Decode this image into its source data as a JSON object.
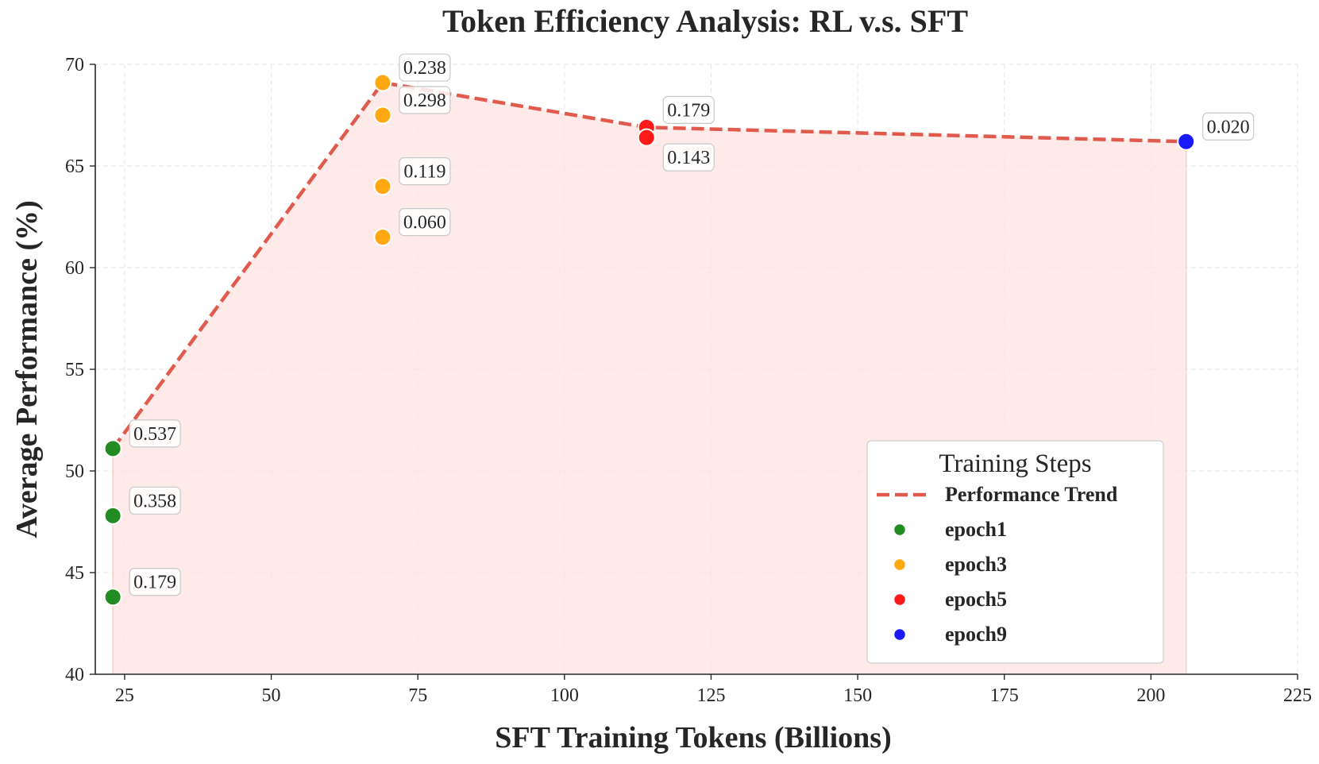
{
  "chart_data": {
    "type": "scatter",
    "title": "Token Efficiency Analysis: RL v.s. SFT",
    "xlabel": "SFT Training Tokens (Billions)",
    "ylabel": "Average Performance (%)",
    "xlim": [
      20,
      225
    ],
    "ylim": [
      40,
      70
    ],
    "xticks": [
      25,
      50,
      75,
      100,
      125,
      150,
      175,
      200,
      225
    ],
    "yticks": [
      40,
      45,
      50,
      55,
      60,
      65,
      70
    ],
    "grid": true,
    "legend": {
      "title": "Training Steps",
      "placement": "lower-right",
      "entries": [
        "Performance Trend",
        "epoch1",
        "epoch3",
        "epoch5",
        "epoch9"
      ]
    },
    "trend": {
      "name": "Performance Trend",
      "color": "#e05a4e",
      "x": [
        23,
        69,
        114,
        206
      ],
      "y": [
        51.1,
        69.1,
        66.9,
        66.2
      ]
    },
    "series": [
      {
        "name": "epoch1",
        "color": "#228b22",
        "points": [
          {
            "x": 23,
            "y": 51.1,
            "label": "0.537"
          },
          {
            "x": 23,
            "y": 47.8,
            "label": "0.358"
          },
          {
            "x": 23,
            "y": 43.8,
            "label": "0.179"
          }
        ]
      },
      {
        "name": "epoch3",
        "color": "#ffa812",
        "points": [
          {
            "x": 69,
            "y": 69.1,
            "label": "0.238"
          },
          {
            "x": 69,
            "y": 67.5,
            "label": "0.298"
          },
          {
            "x": 69,
            "y": 64.0,
            "label": "0.119"
          },
          {
            "x": 69,
            "y": 61.5,
            "label": "0.060"
          }
        ]
      },
      {
        "name": "epoch5",
        "color": "#ff1a1a",
        "points": [
          {
            "x": 114,
            "y": 66.9,
            "label": "0.179"
          },
          {
            "x": 114,
            "y": 66.4,
            "label": "0.143"
          }
        ]
      },
      {
        "name": "epoch9",
        "color": "#1a1aff",
        "points": [
          {
            "x": 206,
            "y": 66.2,
            "label": "0.020"
          }
        ]
      }
    ]
  }
}
